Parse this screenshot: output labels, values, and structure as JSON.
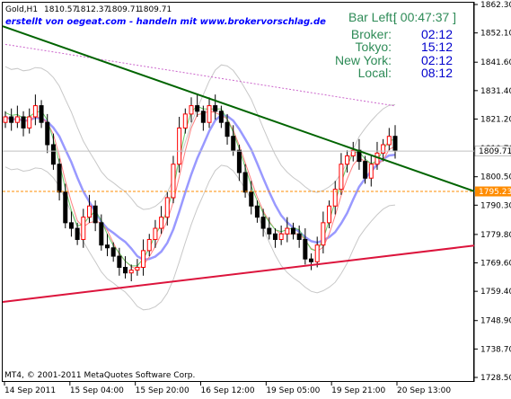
{
  "header": {
    "symbol": "Gold,H1",
    "open": "1810.57",
    "high": "1812.37",
    "low": "1809.71",
    "close": "1809.71",
    "banner": "erstellt von oegeat.com - handeln mit www.brokervorschlag.de"
  },
  "info_panel": {
    "bar_left_label": "Bar Left:",
    "bar_left_value": "[ 00:47:37 ]",
    "broker_label": "Broker:",
    "broker_value": "02:12",
    "tokyo_label": "Tokyo:",
    "tokyo_value": "15:12",
    "newyork_label": "New York:",
    "newyork_value": "02:12",
    "local_label": "Local:",
    "local_value": "08:12"
  },
  "footer": {
    "copyright": "MT4, © 2001-2011 MetaQuotes Software Corp."
  },
  "colors": {
    "bull": "#ff0000",
    "bear": "#008000",
    "background": "#ffffff",
    "resistance": "#006400",
    "support": "#dc143c",
    "ma_slow": "#9999ff",
    "ma_fast": "#ff8080",
    "bollinger": "#c8c8c8",
    "ma_long": "#cc66cc",
    "level_line": "#ff8c00",
    "price_tag": "#ff8c00"
  },
  "chart_data": {
    "type": "candlestick",
    "y_ticks": [
      "1862.30",
      "1852.10",
      "1841.60",
      "1831.40",
      "1821.20",
      "1810.70",
      "1800.50",
      "1790.30",
      "1779.80",
      "1769.60",
      "1759.40",
      "1748.90",
      "1738.70",
      "1728.50"
    ],
    "ylim": [
      1728.5,
      1862.3
    ],
    "x_ticks": [
      "14 Sep 2011",
      "15 Sep 04:00",
      "15 Sep 20:00",
      "16 Sep 12:00",
      "19 Sep 05:00",
      "19 Sep 21:00",
      "20 Sep 13:00"
    ],
    "last_price": "1809.71",
    "level_price": "1795.23",
    "close_series": [
      1822,
      1820,
      1822,
      1818,
      1822,
      1826,
      1820,
      1812,
      1805,
      1795,
      1784,
      1782,
      1778,
      1786,
      1790,
      1784,
      1776,
      1775,
      1772,
      1768,
      1766,
      1767,
      1768,
      1774,
      1778,
      1782,
      1786,
      1793,
      1805,
      1818,
      1823,
      1826,
      1824,
      1820,
      1826,
      1824,
      1820,
      1815,
      1810,
      1802,
      1795,
      1790,
      1786,
      1782,
      1780,
      1778,
      1780,
      1782,
      1780,
      1778,
      1771,
      1770,
      1776,
      1784,
      1790,
      1796,
      1805,
      1808,
      1810,
      1806,
      1800,
      1805,
      1809,
      1812,
      1815,
      1810
    ],
    "support_line": [
      1755.6,
      1775.8
    ],
    "resistance_line": [
      1854.5,
      1795.3
    ]
  }
}
